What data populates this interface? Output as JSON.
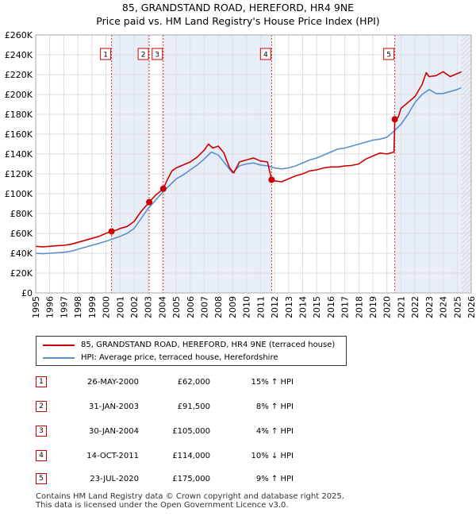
{
  "title_line1": "85, GRANDSTAND ROAD, HEREFORD, HR4 9NE",
  "title_line2": "Price paid vs. HM Land Registry's House Price Index (HPI)",
  "colors": {
    "property": "#cc0000",
    "hpi": "#5b8fcc",
    "shade": "#e8eef8",
    "grid": "#dddddd"
  },
  "legend": {
    "property_label": "85, GRANDSTAND ROAD, HEREFORD, HR4 9NE (terraced house)",
    "hpi_label": "HPI: Average price, terraced house, Herefordshire"
  },
  "sales": [
    {
      "num": "1",
      "date": "26-MAY-2000",
      "price": "£62,000",
      "hpi": "15% ↑ HPI"
    },
    {
      "num": "2",
      "date": "31-JAN-2003",
      "price": "£91,500",
      "hpi": "8% ↑ HPI"
    },
    {
      "num": "3",
      "date": "30-JAN-2004",
      "price": "£105,000",
      "hpi": "4% ↑ HPI"
    },
    {
      "num": "4",
      "date": "14-OCT-2011",
      "price": "£114,000",
      "hpi": "10% ↓ HPI"
    },
    {
      "num": "5",
      "date": "23-JUL-2020",
      "price": "£175,000",
      "hpi": "9% ↑ HPI"
    }
  ],
  "footer": {
    "line1": "Contains HM Land Registry data © Crown copyright and database right 2025.",
    "line2": "This data is licensed under the Open Government Licence v3.0."
  },
  "chart_data": {
    "type": "line",
    "title": "85, GRANDSTAND ROAD, HEREFORD, HR4 9NE",
    "subtitle": "Price paid vs. HM Land Registry's House Price Index (HPI)",
    "xlim": [
      1995,
      2026
    ],
    "ylim": [
      0,
      260000
    ],
    "x_ticks": [
      1995,
      1996,
      1997,
      1998,
      1999,
      2000,
      2001,
      2002,
      2003,
      2004,
      2005,
      2006,
      2007,
      2008,
      2009,
      2010,
      2011,
      2012,
      2013,
      2014,
      2015,
      2016,
      2017,
      2018,
      2019,
      2020,
      2021,
      2022,
      2023,
      2024,
      2025,
      2026
    ],
    "y_ticks": [
      0,
      20000,
      40000,
      60000,
      80000,
      100000,
      120000,
      140000,
      160000,
      180000,
      200000,
      220000,
      240000,
      260000
    ],
    "y_tick_labels": [
      "£0",
      "£20K",
      "£40K",
      "£60K",
      "£80K",
      "£100K",
      "£120K",
      "£140K",
      "£160K",
      "£180K",
      "£200K",
      "£220K",
      "£240K",
      "£260K"
    ],
    "sale_points": [
      {
        "label": "1",
        "x": 2000.4,
        "y": 62000
      },
      {
        "label": "2",
        "x": 2003.08,
        "y": 91500
      },
      {
        "label": "3",
        "x": 2004.08,
        "y": 105000
      },
      {
        "label": "4",
        "x": 2011.79,
        "y": 114000
      },
      {
        "label": "5",
        "x": 2020.56,
        "y": 175000
      }
    ],
    "shaded_periods": [
      [
        2000.4,
        2003.08
      ],
      [
        2004.08,
        2011.79
      ],
      [
        2020.56,
        2026
      ]
    ],
    "hatched_from": 2025.3,
    "series": [
      {
        "name": "85, GRANDSTAND ROAD, HEREFORD, HR4 9NE (terraced house)",
        "x": [
          1995,
          1995.5,
          1996,
          1996.5,
          1997,
          1997.5,
          1998,
          1998.5,
          1999,
          1999.5,
          2000,
          2000.4,
          2000.8,
          2001,
          2001.5,
          2002,
          2002.5,
          2003.08,
          2003.5,
          2004.08,
          2004.4,
          2004.7,
          2005,
          2005.5,
          2006,
          2006.5,
          2007,
          2007.3,
          2007.6,
          2008,
          2008.4,
          2008.8,
          2009.1,
          2009.5,
          2010,
          2010.5,
          2011,
          2011.5,
          2011.79,
          2012,
          2012.5,
          2013,
          2013.5,
          2014,
          2014.5,
          2015,
          2015.5,
          2016,
          2016.5,
          2017,
          2017.5,
          2018,
          2018.5,
          2019,
          2019.5,
          2020,
          2020.5,
          2020.56,
          2020.8,
          2021,
          2021.5,
          2022,
          2022.5,
          2022.8,
          2023,
          2023.5,
          2024,
          2024.5,
          2025,
          2025.3
        ],
        "y": [
          47000,
          46500,
          47000,
          47500,
          48000,
          49000,
          51000,
          53000,
          55000,
          57000,
          60000,
          62000,
          63500,
          65000,
          67000,
          72000,
          82000,
          91500,
          98000,
          105000,
          115000,
          123000,
          126000,
          129000,
          132000,
          137000,
          144000,
          150000,
          146000,
          148000,
          141000,
          126000,
          121000,
          132000,
          134000,
          136000,
          133000,
          132000,
          114000,
          113000,
          112000,
          115000,
          118000,
          120000,
          123000,
          124000,
          126000,
          127000,
          127000,
          128000,
          128500,
          130000,
          135000,
          138000,
          141000,
          140000,
          142000,
          175000,
          177000,
          186000,
          192000,
          198000,
          210000,
          222000,
          218000,
          219000,
          223000,
          218000,
          221000,
          223000
        ]
      },
      {
        "name": "HPI: Average price, terraced house, Herefordshire",
        "x": [
          1995,
          1995.5,
          1996,
          1996.5,
          1997,
          1997.5,
          1998,
          1998.5,
          1999,
          1999.5,
          2000,
          2000.5,
          2001,
          2001.5,
          2002,
          2002.5,
          2003,
          2003.5,
          2004,
          2004.5,
          2005,
          2005.5,
          2006,
          2006.5,
          2007,
          2007.5,
          2008,
          2008.5,
          2009,
          2009.5,
          2010,
          2010.5,
          2011,
          2011.5,
          2012,
          2012.5,
          2013,
          2013.5,
          2014,
          2014.5,
          2015,
          2015.5,
          2016,
          2016.5,
          2017,
          2017.5,
          2018,
          2018.5,
          2019,
          2019.5,
          2020,
          2020.5,
          2021,
          2021.5,
          2022,
          2022.5,
          2023,
          2023.5,
          2024,
          2024.5,
          2025,
          2025.3
        ],
        "y": [
          40000,
          39500,
          40000,
          40500,
          41000,
          42000,
          44000,
          46000,
          48000,
          50000,
          52000,
          54500,
          57000,
          60000,
          65000,
          75000,
          85000,
          93000,
          101000,
          108000,
          115000,
          119000,
          124000,
          129000,
          135000,
          142000,
          139000,
          130000,
          121000,
          128000,
          130000,
          131000,
          129000,
          128000,
          126000,
          125000,
          126000,
          128000,
          131000,
          134000,
          136000,
          139000,
          142000,
          145000,
          146000,
          148000,
          150000,
          152000,
          154000,
          155000,
          157000,
          163000,
          170000,
          180000,
          192000,
          200000,
          205000,
          201000,
          201000,
          203000,
          205000,
          207000
        ]
      }
    ]
  }
}
